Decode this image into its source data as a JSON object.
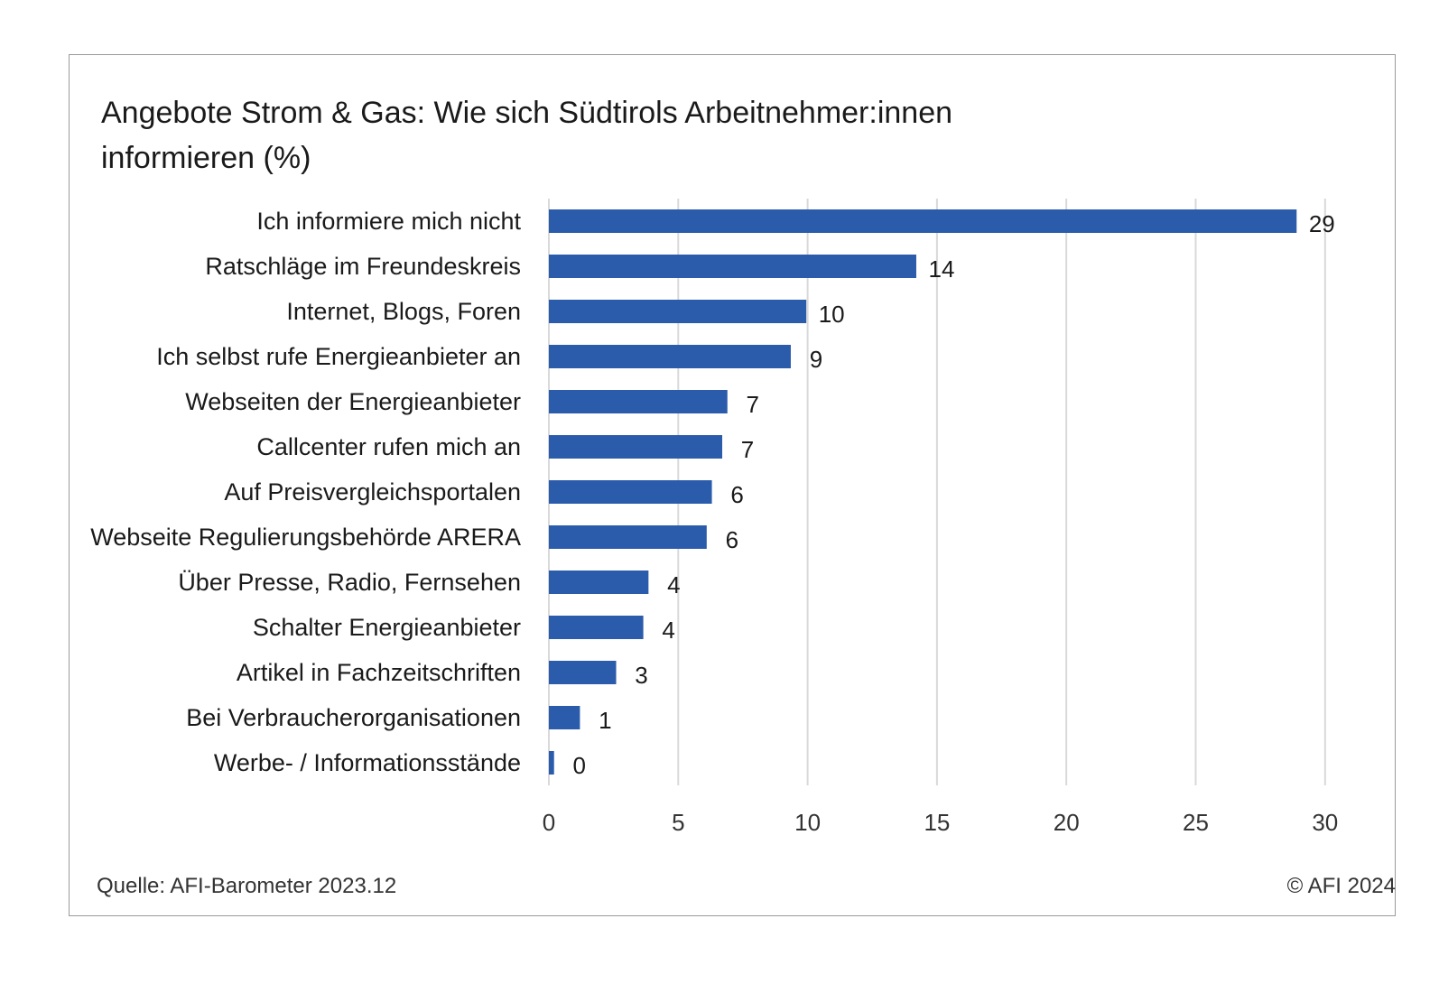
{
  "title": "Angebote Strom & Gas: Wie sich Südtirols Arbeitnehmer:innen informieren (%)",
  "source": "Quelle: AFI-Barometer  2023.12",
  "copyright": "© AFI 2024",
  "colors": {
    "bar": "#2b5bab",
    "grid": "#d9d9d9",
    "text": "#1a1a1a"
  },
  "chart_data": {
    "type": "bar",
    "orientation": "horizontal",
    "title": "Angebote Strom & Gas: Wie sich Südtirols Arbeitnehmer:innen informieren (%)",
    "categories": [
      "Ich informiere mich nicht",
      "Ratschläge im Freundeskreis",
      "Internet, Blogs, Foren",
      "Ich selbst rufe Energieanbieter an",
      "Webseiten der Energieanbieter",
      "Callcenter rufen mich an",
      "Auf Preisvergleichsportalen",
      "Webseite Regulierungsbehörde ARERA",
      "Über Presse, Radio, Fernsehen",
      "Schalter Energieanbieter",
      "Artikel in Fachzeitschriften",
      "Bei Verbraucherorganisationen",
      "Werbe- / Informationsstände"
    ],
    "values": [
      28.9,
      14.2,
      9.95,
      9.35,
      6.9,
      6.7,
      6.3,
      6.1,
      3.85,
      3.65,
      2.6,
      1.2,
      0.2
    ],
    "value_labels": [
      "29",
      "14",
      "10",
      "9",
      "7",
      "7",
      "6",
      "6",
      "4",
      "4",
      "3",
      "1",
      "0"
    ],
    "xlim": [
      0,
      30
    ],
    "x_ticks": [
      "0",
      "5",
      "10",
      "15",
      "20",
      "25",
      "30"
    ],
    "grid": "vertical",
    "legend": "none"
  }
}
